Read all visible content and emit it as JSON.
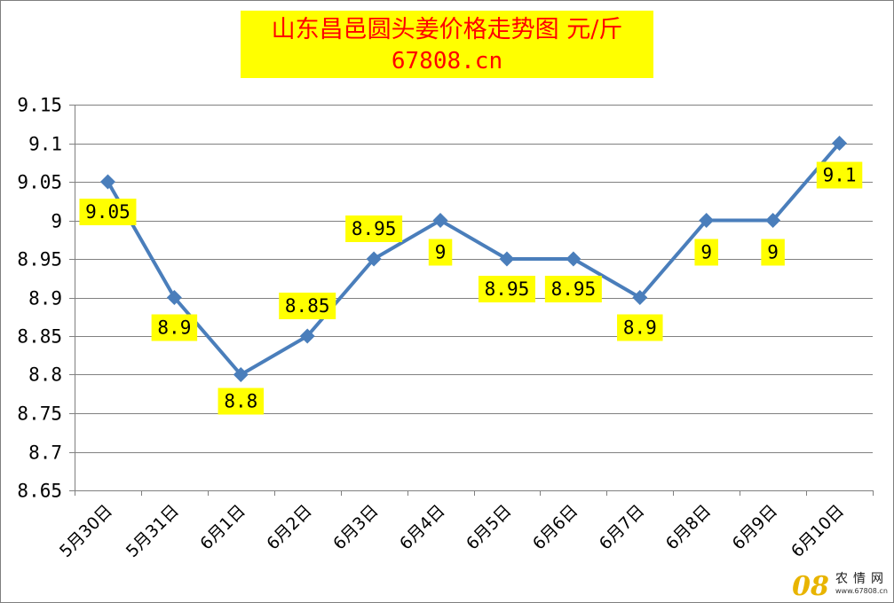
{
  "chart_data": {
    "type": "line",
    "title": "山东昌邑圆头姜价格走势图 元/斤",
    "subtitle": "67808.cn",
    "xlabel": "",
    "ylabel": "",
    "categories": [
      "5月30日",
      "5月31日",
      "6月1日",
      "6月2日",
      "6月3日",
      "6月4日",
      "6月5日",
      "6月6日",
      "6月7日",
      "6月8日",
      "6月9日",
      "6月10日"
    ],
    "series": [
      {
        "values": [
          9.05,
          8.9,
          8.8,
          8.85,
          8.95,
          9,
          8.95,
          8.95,
          8.9,
          9,
          9,
          9.1
        ],
        "labels": [
          "9.05",
          "8.9",
          "8.8",
          "8.85",
          "8.95",
          "9",
          "8.95",
          "8.95",
          "8.9",
          "9",
          "9",
          "9.1"
        ]
      }
    ],
    "ylim": [
      8.65,
      9.15
    ],
    "yticks": [
      "9.15",
      "9.1",
      "9.05",
      "9",
      "8.95",
      "8.9",
      "8.85",
      "8.8",
      "8.75",
      "8.7",
      "8.65"
    ],
    "grid": true,
    "legend": "none",
    "colors": {
      "line": "#4a7ebb",
      "label_bg": "#ffff00",
      "title_bg": "#ffff00",
      "title_text": "#ff0000",
      "grid": "#808080"
    }
  },
  "watermark": {
    "number": "08",
    "name": "农情网",
    "url": "www.67808.cn"
  }
}
